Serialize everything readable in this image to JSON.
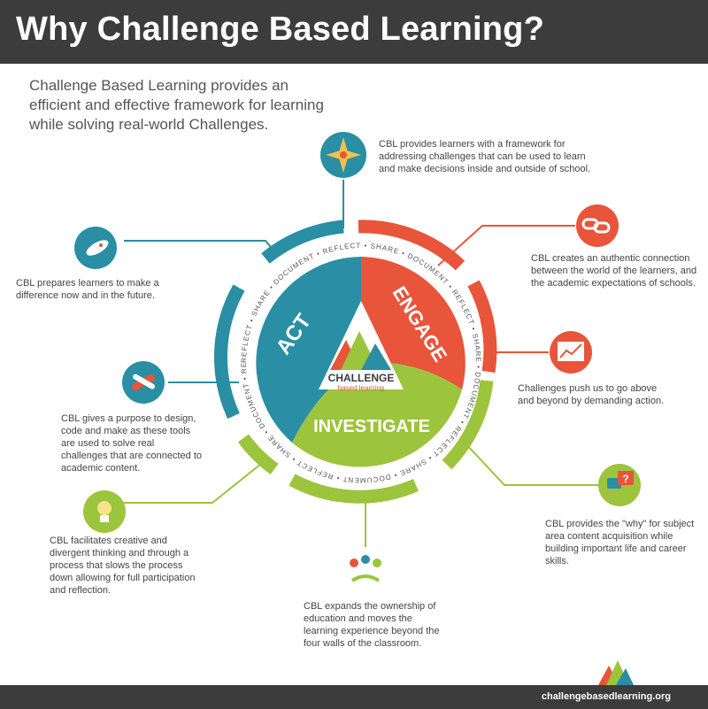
{
  "header": {
    "title": "Why Challenge Based Learning?"
  },
  "intro": "Challenge Based Learning provides an efficient and effective framework for learning while solving real-world Challenges.",
  "center": {
    "phases": [
      "ENGAGE",
      "INVESTIGATE",
      "ACT"
    ],
    "logo_word": "CHALLENGE",
    "logo_sub": "based learning",
    "ring_text": "REFLECT • SHARE • DOCUMENT • REFLECT • SHARE • DOCUMENT • REFLECT • SHARE • DOCUMENT • REFLECT • SHARE • DOCUMENT • REFLECT • SHARE • DOCUMENT • REFLECT • SHARE • DOCUMENT •"
  },
  "callouts": {
    "top": "CBL provides learners with a framework for addressing challenges that can be used to learn and make decisions inside and outside of school.",
    "right1": "CBL creates an authentic connection between the world of the learners, and the academic expectations of schools.",
    "right2": "Challenges push us to go above and beyond by demanding action.",
    "right3": "CBL provides the \"why\" for subject area content acquisition while building important life and career skills.",
    "bottom": "CBL expands the ownership of education and moves the learning experience beyond the four walls of the classroom.",
    "left1": "CBL prepares learners to make a difference now and in the future.",
    "left2": "CBL gives a purpose to design, code and make as these tools are used to solve real challenges that are connected to academic content.",
    "left3": "CBL facilitates creative and divergent thinking and through a process that slows the process down allowing for full participation and reflection."
  },
  "footer": {
    "url": "challengebasedlearning.org"
  },
  "colors": {
    "teal": "#2a8ea4",
    "orange": "#e8553a",
    "green": "#9cc43c",
    "dark": "#3c3c3c"
  }
}
